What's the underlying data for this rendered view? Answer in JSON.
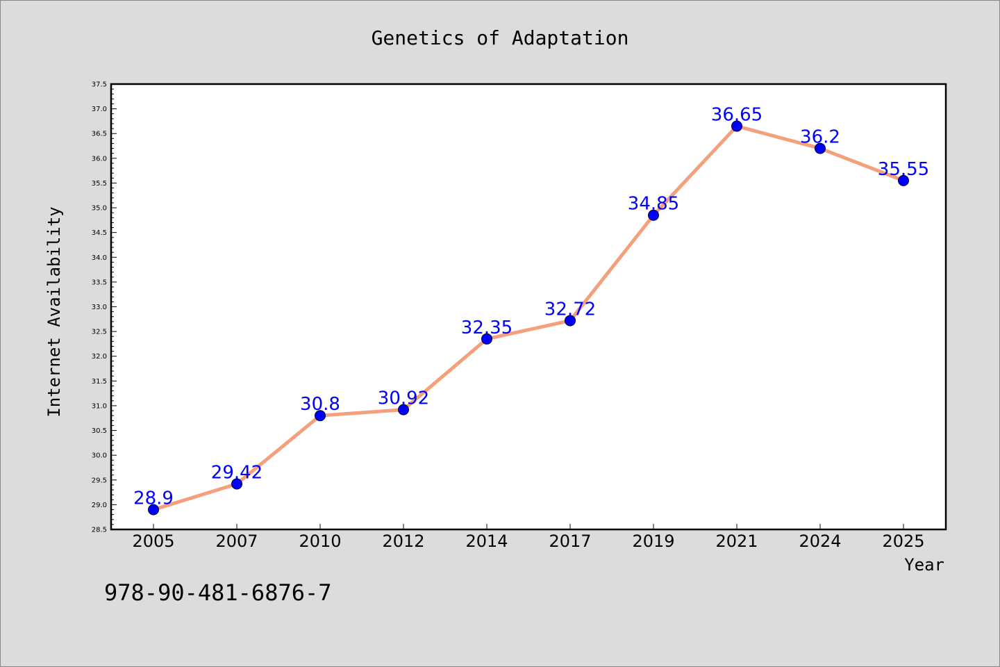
{
  "chart_data": {
    "type": "line",
    "title": "Genetics of Adaptation",
    "xlabel": "Year",
    "ylabel": "Internet Availability",
    "categories": [
      "2005",
      "2007",
      "2010",
      "2012",
      "2014",
      "2017",
      "2019",
      "2021",
      "2024",
      "2025"
    ],
    "series": [
      {
        "values": [
          28.9,
          29.42,
          30.8,
          30.92,
          32.35,
          32.72,
          34.85,
          36.65,
          36.2,
          35.55
        ],
        "data_labels": [
          "28.9",
          "29.42",
          "30.8",
          "30.92",
          "32.35",
          "32.72",
          "34.85",
          "36.65",
          "36.2",
          "35.55"
        ],
        "line_color": "#f4a07c",
        "marker_color": "#0000ff",
        "label_color": "#0000ff"
      }
    ],
    "ylim": [
      28.5,
      37.5
    ],
    "yticks": [
      "28.5",
      "29.0",
      "29.5",
      "30.0",
      "30.5",
      "31.0",
      "31.5",
      "32.0",
      "32.5",
      "33.0",
      "33.5",
      "34.0",
      "34.5",
      "35.0",
      "35.5",
      "36.0",
      "36.5",
      "37.0",
      "37.5"
    ],
    "grid": false,
    "legend": "none"
  },
  "footer": {
    "isbn": "978-90-481-6876-7"
  },
  "colors": {
    "background": "#dcdcdc",
    "plot_background": "#ffffff",
    "axis": "#000000"
  }
}
